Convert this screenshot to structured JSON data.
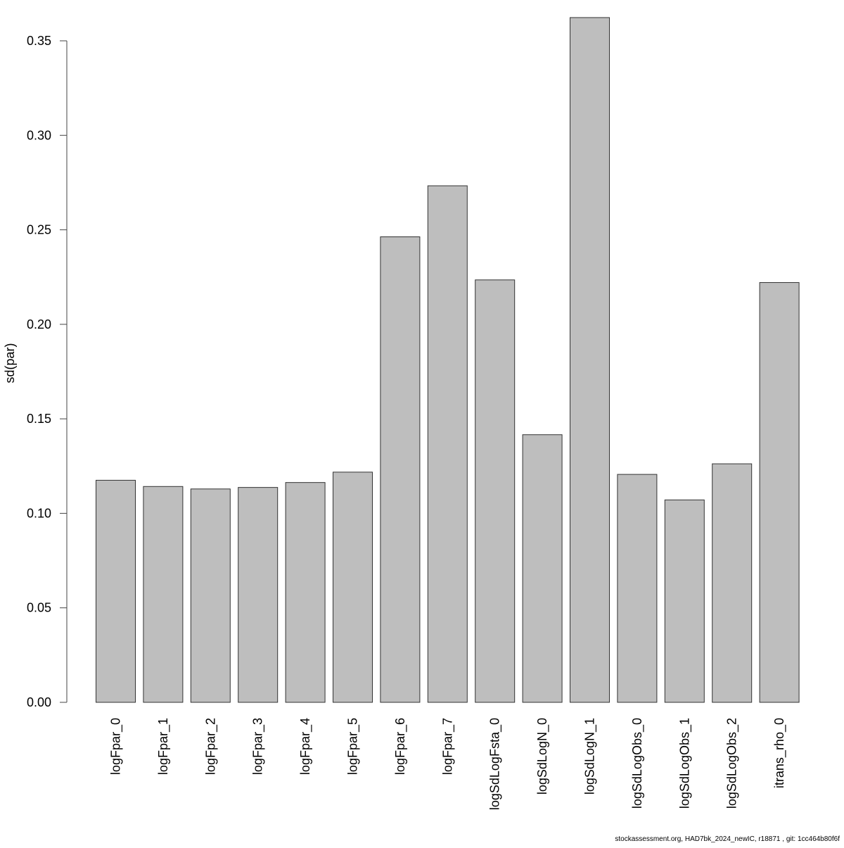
{
  "chart_data": {
    "type": "bar",
    "title": "",
    "xlabel": "",
    "ylabel": "sd(par)",
    "ylim": [
      0,
      0.35
    ],
    "yticks": [
      "0.00",
      "0.05",
      "0.10",
      "0.15",
      "0.20",
      "0.25",
      "0.30",
      "0.35"
    ],
    "grid": false,
    "legend": "none",
    "bar_color": "#bebebe",
    "bar_border_color": "#333333",
    "categories": [
      "logFpar_0",
      "logFpar_1",
      "logFpar_2",
      "logFpar_3",
      "logFpar_4",
      "logFpar_5",
      "logFpar_6",
      "logFpar_7",
      "logSdLogFsta_0",
      "logSdLogN_0",
      "logSdLogN_1",
      "logSdLogObs_0",
      "logSdLogObs_1",
      "logSdLogObs_2",
      "itrans_rho_0"
    ],
    "values": [
      0.1175,
      0.1142,
      0.1129,
      0.1137,
      0.1163,
      0.1218,
      0.2463,
      0.2733,
      0.2235,
      0.1416,
      0.3623,
      0.1206,
      0.1071,
      0.1262,
      0.2221
    ]
  },
  "footer": {
    "text": "stockassessment.org, HAD7bk_2024_newIC, r18871 , git: 1cc464b80f6f"
  }
}
